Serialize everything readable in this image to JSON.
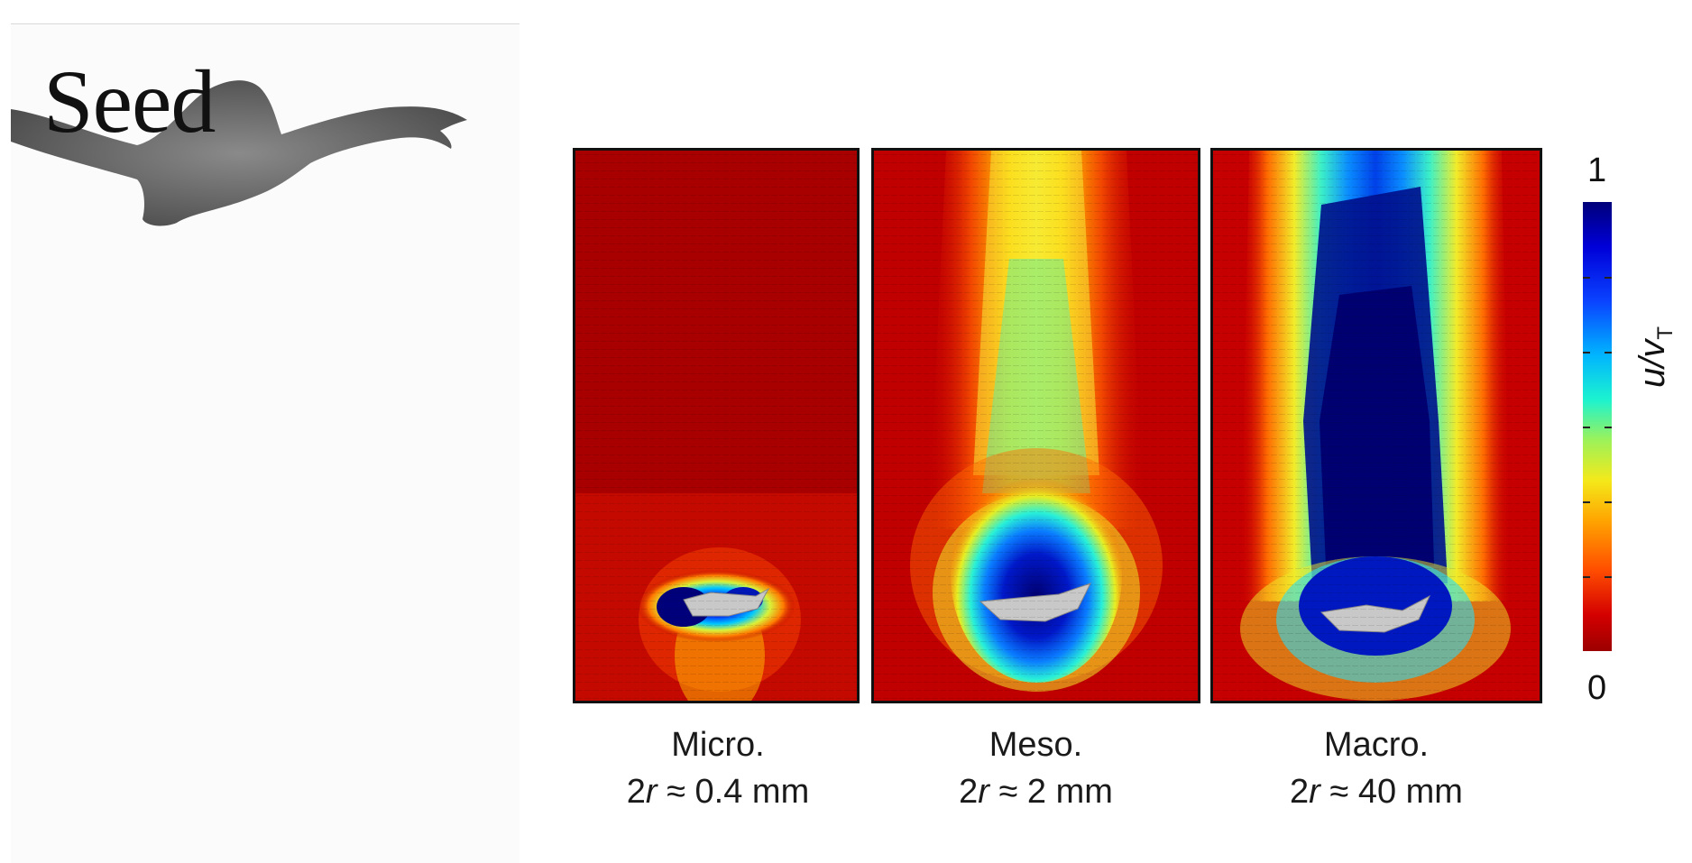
{
  "left_panel": {
    "seed_label": "Seed"
  },
  "panels": [
    {
      "name": "Micro.",
      "r": "0.4 mm"
    },
    {
      "name": "Meso.",
      "r": "2 mm"
    },
    {
      "name": "Macro.",
      "r": "40 mm"
    }
  ],
  "caption_parts": {
    "prefix": "2",
    "var": "r",
    "approx": " ≈ "
  },
  "colorbar": {
    "max_label": "1",
    "min_label": "0",
    "axis_label": {
      "var": "u/v",
      "subscript": "T"
    },
    "colors": [
      "#00007a",
      "#0000d8",
      "#0a42ff",
      "#00b4ff",
      "#1cf3d0",
      "#9cf25a",
      "#f4e91a",
      "#ffa400",
      "#ff4d00",
      "#d40000",
      "#9c0000"
    ]
  },
  "colors": {
    "field_background": "#b80000",
    "wake": "#00008c",
    "seed_gray": "#c8c8c8"
  }
}
